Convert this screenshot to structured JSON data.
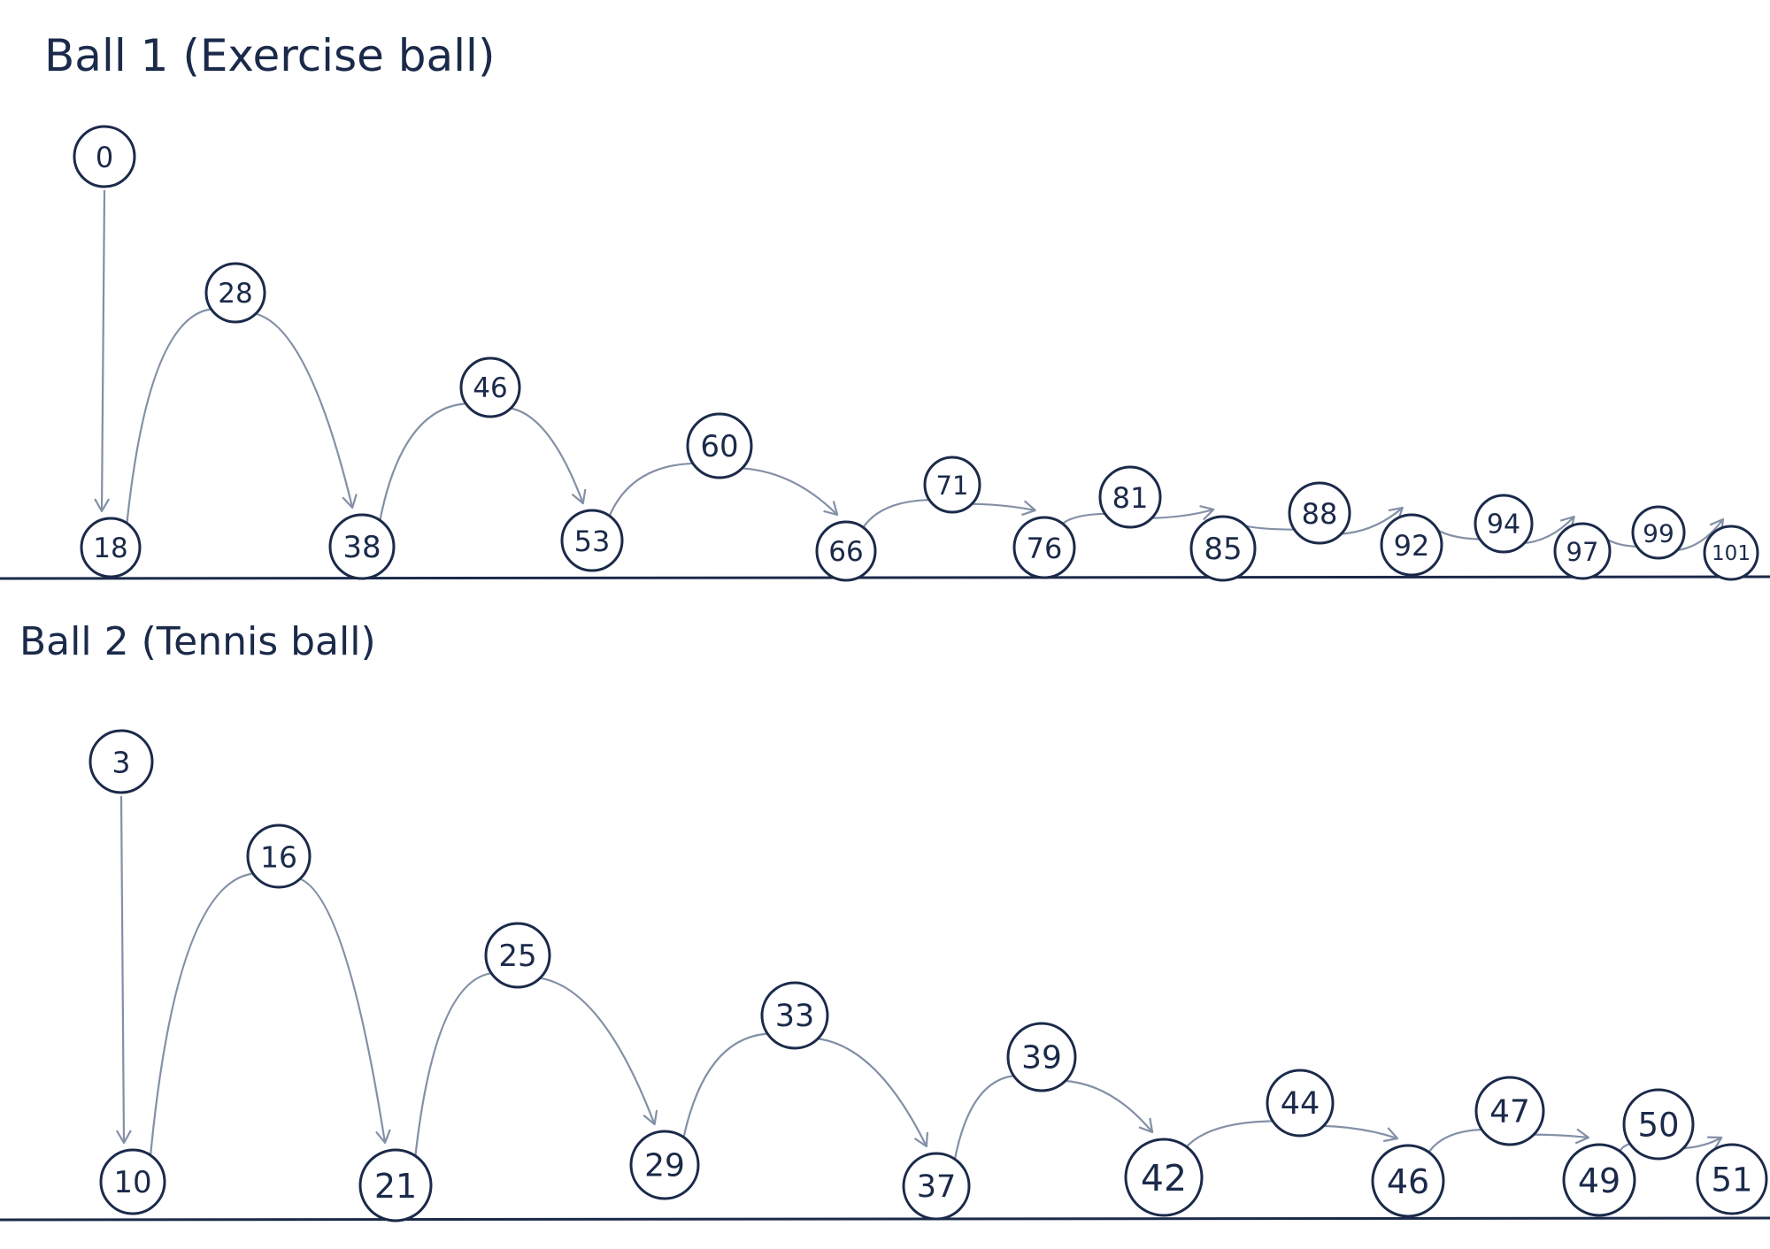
{
  "ball1": {
    "title": "Ball 1  (Exercise ball)",
    "frames": [
      "0",
      "18",
      "28",
      "38",
      "46",
      "53",
      "60",
      "66",
      "71",
      "76",
      "81",
      "85",
      "88",
      "92",
      "94",
      "97",
      "99",
      "101"
    ]
  },
  "ball2": {
    "title": "Ball 2  (Tennis ball)",
    "frames": [
      "3",
      "10",
      "16",
      "21",
      "25",
      "29",
      "33",
      "37",
      "39",
      "42",
      "44",
      "46",
      "47",
      "49",
      "50",
      "51"
    ]
  },
  "colors": {
    "ink": "#1b2a4a",
    "arc": "#8390a6",
    "background": "#ffffff"
  }
}
